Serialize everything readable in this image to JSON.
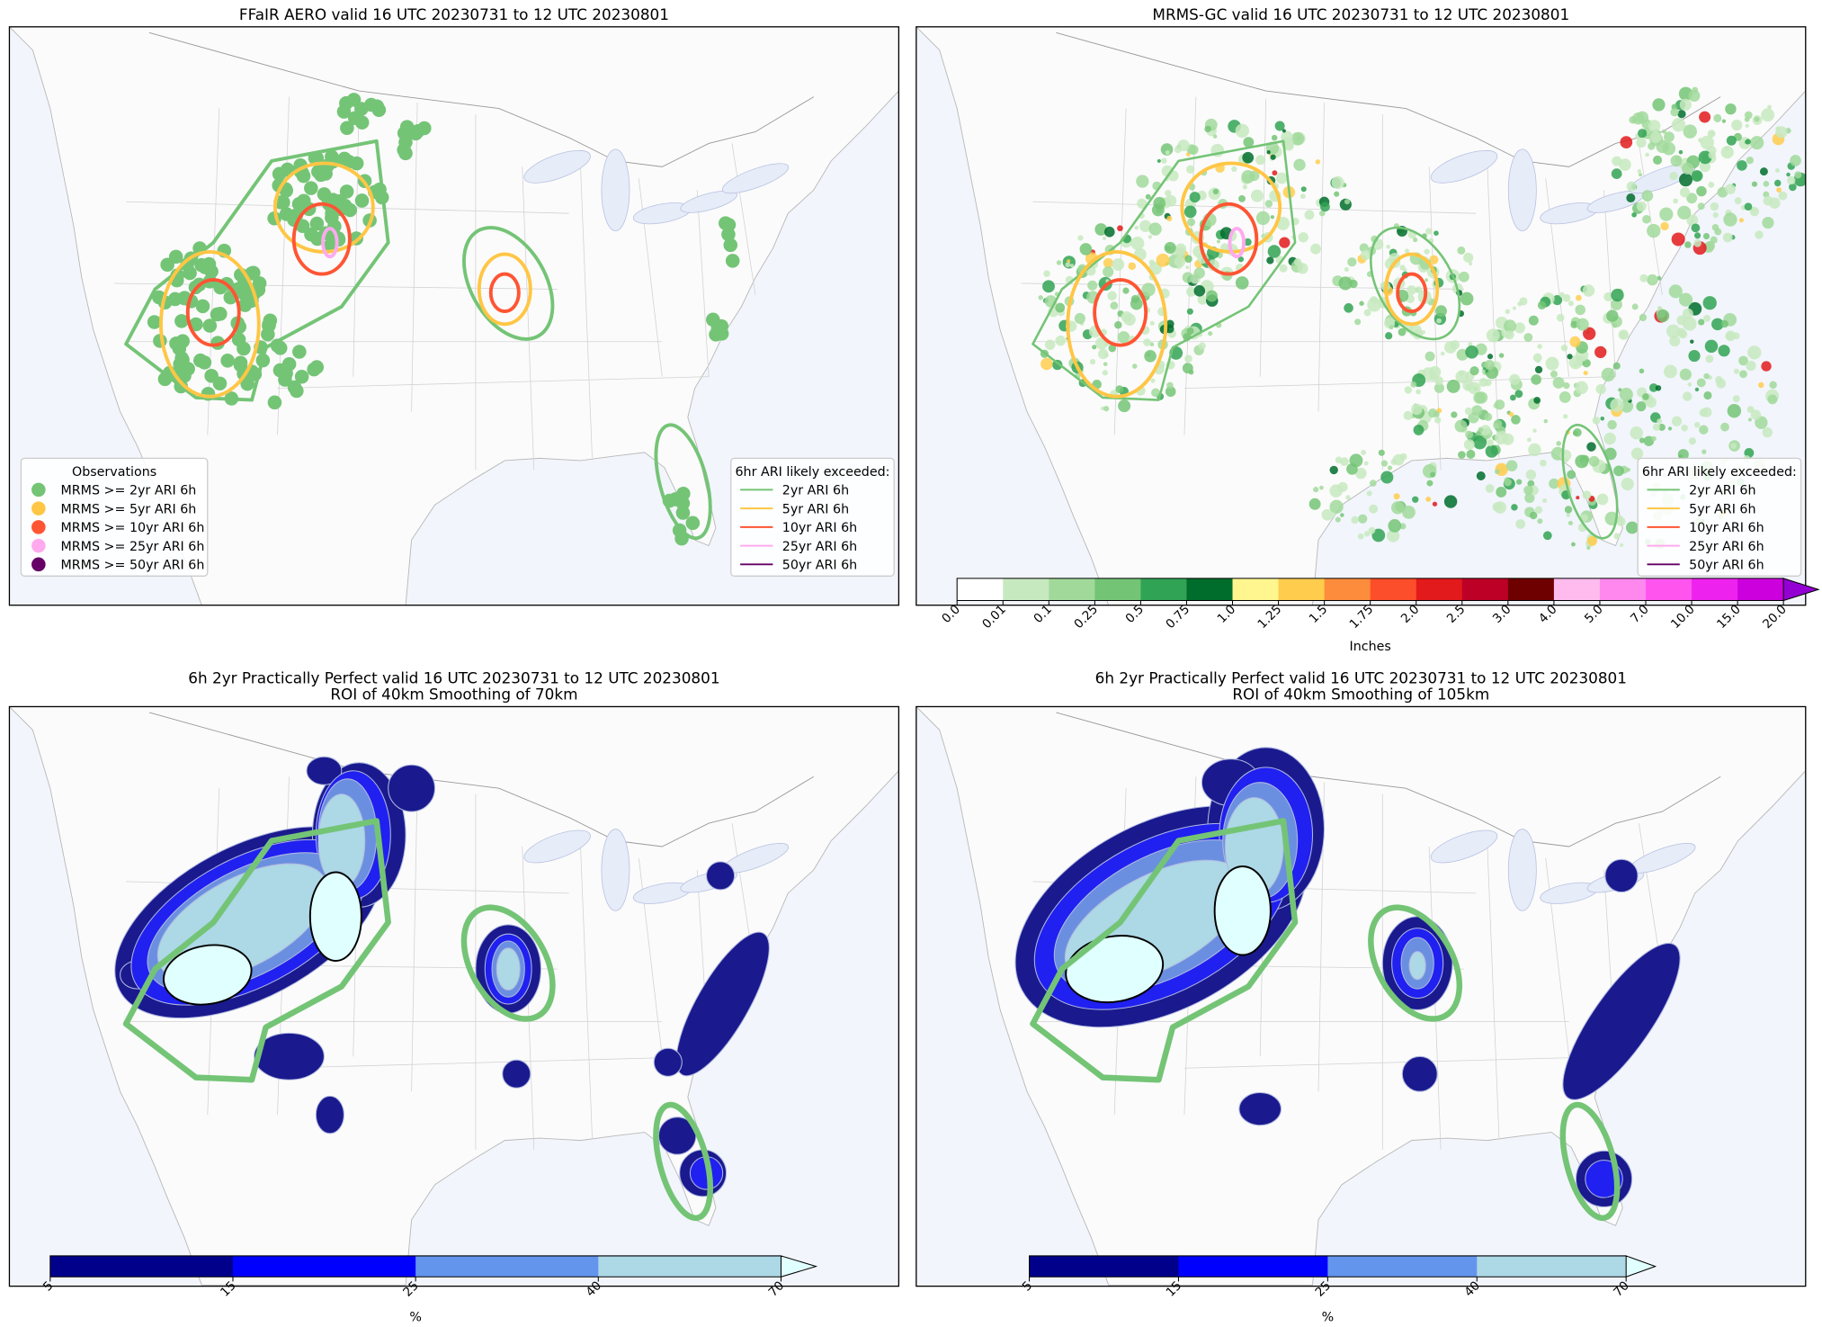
{
  "panels": [
    {
      "title": "FFaIR AERO valid 16 UTC 20230731 to 12 UTC 20230801",
      "legends": [
        {
          "title": "Observations",
          "kind": "marker",
          "entries": [
            {
              "label": "MRMS >= 2yr ARI 6h",
              "color": "#74c476"
            },
            {
              "label": "MRMS >= 5yr ARI 6h",
              "color": "#ffc645"
            },
            {
              "label": "MRMS >= 10yr ARI 6h",
              "color": "#ff5533"
            },
            {
              "label": "MRMS >= 25yr ARI 6h",
              "color": "#ffaaee"
            },
            {
              "label": "MRMS >= 50yr ARI 6h",
              "color": "#660066"
            }
          ]
        },
        {
          "title": "6hr ARI likely exceeded:",
          "kind": "line",
          "entries": [
            {
              "label": "2yr ARI 6h",
              "color": "#74c476"
            },
            {
              "label": "5yr ARI 6h",
              "color": "#ffc645"
            },
            {
              "label": "10yr ARI 6h",
              "color": "#ff5533"
            },
            {
              "label": "25yr ARI 6h",
              "color": "#ffaaee"
            },
            {
              "label": "50yr ARI 6h",
              "color": "#660066"
            }
          ]
        }
      ]
    },
    {
      "title": "MRMS-GC valid 16 UTC 20230731 to 12 UTC 20230801",
      "legends": [
        {
          "title": "6hr ARI likely exceeded:",
          "kind": "line",
          "entries": [
            {
              "label": "2yr ARI 6h",
              "color": "#74c476"
            },
            {
              "label": "5yr ARI 6h",
              "color": "#ffc645"
            },
            {
              "label": "10yr ARI 6h",
              "color": "#ff5533"
            },
            {
              "label": "25yr ARI 6h",
              "color": "#ffaaee"
            },
            {
              "label": "50yr ARI 6h",
              "color": "#660066"
            }
          ]
        }
      ],
      "colorbar": {
        "label": "Inches",
        "ticks": [
          {
            "value": 0,
            "label": "0.0"
          },
          0.01,
          0.1,
          0.25,
          0.5,
          0.75,
          {
            "value": 1,
            "label": "1.0"
          },
          1.25,
          1.5,
          1.75,
          {
            "value": 2,
            "label": "2.0"
          },
          2.5,
          {
            "value": 3,
            "label": "3.0"
          },
          {
            "value": 4,
            "label": "4.0"
          },
          {
            "value": 5,
            "label": "5.0"
          },
          {
            "value": 7,
            "label": "7.0"
          },
          {
            "value": 10,
            "label": "10.0"
          },
          {
            "value": 15,
            "label": "15.0"
          },
          {
            "value": 20,
            "label": "20.0"
          }
        ],
        "colors": [
          "#ffffff",
          "#c7e9c0",
          "#a1d99b",
          "#74c476",
          "#31a354",
          "#006d2c",
          "#fff68f",
          "#ffcc4d",
          "#fd8d3c",
          "#fc4e2a",
          "#e31a1c",
          "#bd0026",
          "#6e0000",
          "#ffbbee",
          "#ff88ee",
          "#ff55ee",
          "#ee22ee",
          "#cc00dd"
        ],
        "extend_color": "#9400d3"
      }
    },
    {
      "title": "6h 2yr Practically Perfect valid 16 UTC 20230731 to 12 UTC 20230801",
      "subtitle": "ROI of 40km Smoothing of 70km",
      "colorbar": {
        "label": "%",
        "ticks": [
          5,
          15,
          25,
          40,
          70
        ],
        "colors": [
          "#00008b",
          "#0000ff",
          "#6495ed",
          "#add8e6"
        ],
        "extend_color": "#e0ffff"
      }
    },
    {
      "title": "6h 2yr Practically Perfect valid 16 UTC 20230731 to 12 UTC 20230801",
      "subtitle": "ROI of 40km Smoothing of 105km",
      "colorbar": {
        "label": "%",
        "ticks": [
          5,
          15,
          25,
          40,
          70
        ],
        "colors": [
          "#00008b",
          "#0000ff",
          "#6495ed",
          "#add8e6"
        ],
        "extend_color": "#e0ffff"
      }
    }
  ]
}
